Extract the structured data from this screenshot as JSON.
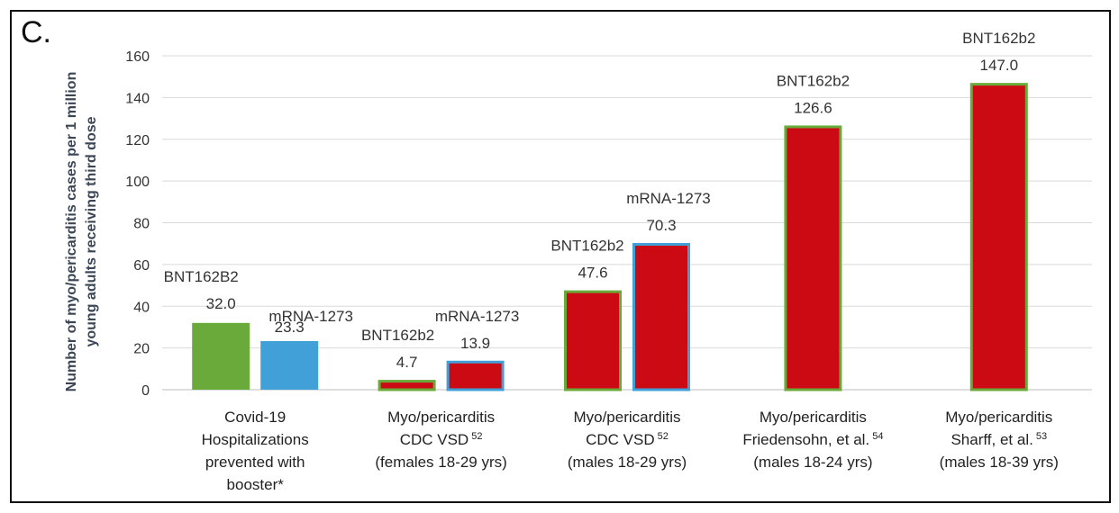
{
  "panel_label": "C.",
  "chart_data": {
    "type": "bar",
    "ylabel_lines": [
      "Number of myo/pericarditis cases per 1 million",
      "young adults receiving third dose"
    ],
    "ylim": [
      0,
      160
    ],
    "yticks": [
      0,
      20,
      40,
      60,
      80,
      100,
      120,
      140,
      160
    ],
    "grid": true,
    "legend": "none",
    "colors": {
      "green": "#6aaa3a",
      "blue": "#41a0d8",
      "red": "#cc0a14",
      "green_outline": "#6aaa3a",
      "blue_outline": "#41a0d8"
    },
    "categories": [
      {
        "lines": [
          "Covid-19",
          "Hospitalizations",
          "prevented with",
          "booster*"
        ],
        "sup": "",
        "bars": [
          {
            "name": "BNT162B2",
            "value": 32.0,
            "value_label": "32.0",
            "fill": "green",
            "outline": "green"
          },
          {
            "name": "mRNA-1273",
            "value": 23.3,
            "value_label": "23.3",
            "fill": "blue",
            "outline": "blue"
          }
        ]
      },
      {
        "lines": [
          "Myo/pericarditis",
          "CDC VSD",
          "(females 18-29 yrs)"
        ],
        "sup": "52",
        "bars": [
          {
            "name": "BNT162b2",
            "value": 4.7,
            "value_label": "4.7",
            "fill": "red",
            "outline": "green"
          },
          {
            "name": "mRNA-1273",
            "value": 13.9,
            "value_label": "13.9",
            "fill": "red",
            "outline": "blue"
          }
        ]
      },
      {
        "lines": [
          "Myo/pericarditis",
          "CDC VSD",
          "(males 18-29 yrs)"
        ],
        "sup": "52",
        "bars": [
          {
            "name": "BNT162b2",
            "value": 47.6,
            "value_label": "47.6",
            "fill": "red",
            "outline": "green"
          },
          {
            "name": "mRNA-1273",
            "value": 70.3,
            "value_label": "70.3",
            "fill": "red",
            "outline": "blue"
          }
        ]
      },
      {
        "lines": [
          "Myo/pericarditis",
          "Friedensohn, et al.",
          "(males 18-24 yrs)"
        ],
        "sup": "54",
        "bars": [
          {
            "name": "BNT162b2",
            "value": 126.6,
            "value_label": "126.6",
            "fill": "red",
            "outline": "green"
          }
        ]
      },
      {
        "lines": [
          "Myo/pericarditis",
          "Sharff, et al.",
          "(males 18-39 yrs)"
        ],
        "sup": "53",
        "bars": [
          {
            "name": "BNT162b2",
            "value": 147.0,
            "value_label": "147.0",
            "fill": "red",
            "outline": "green"
          }
        ]
      }
    ]
  }
}
